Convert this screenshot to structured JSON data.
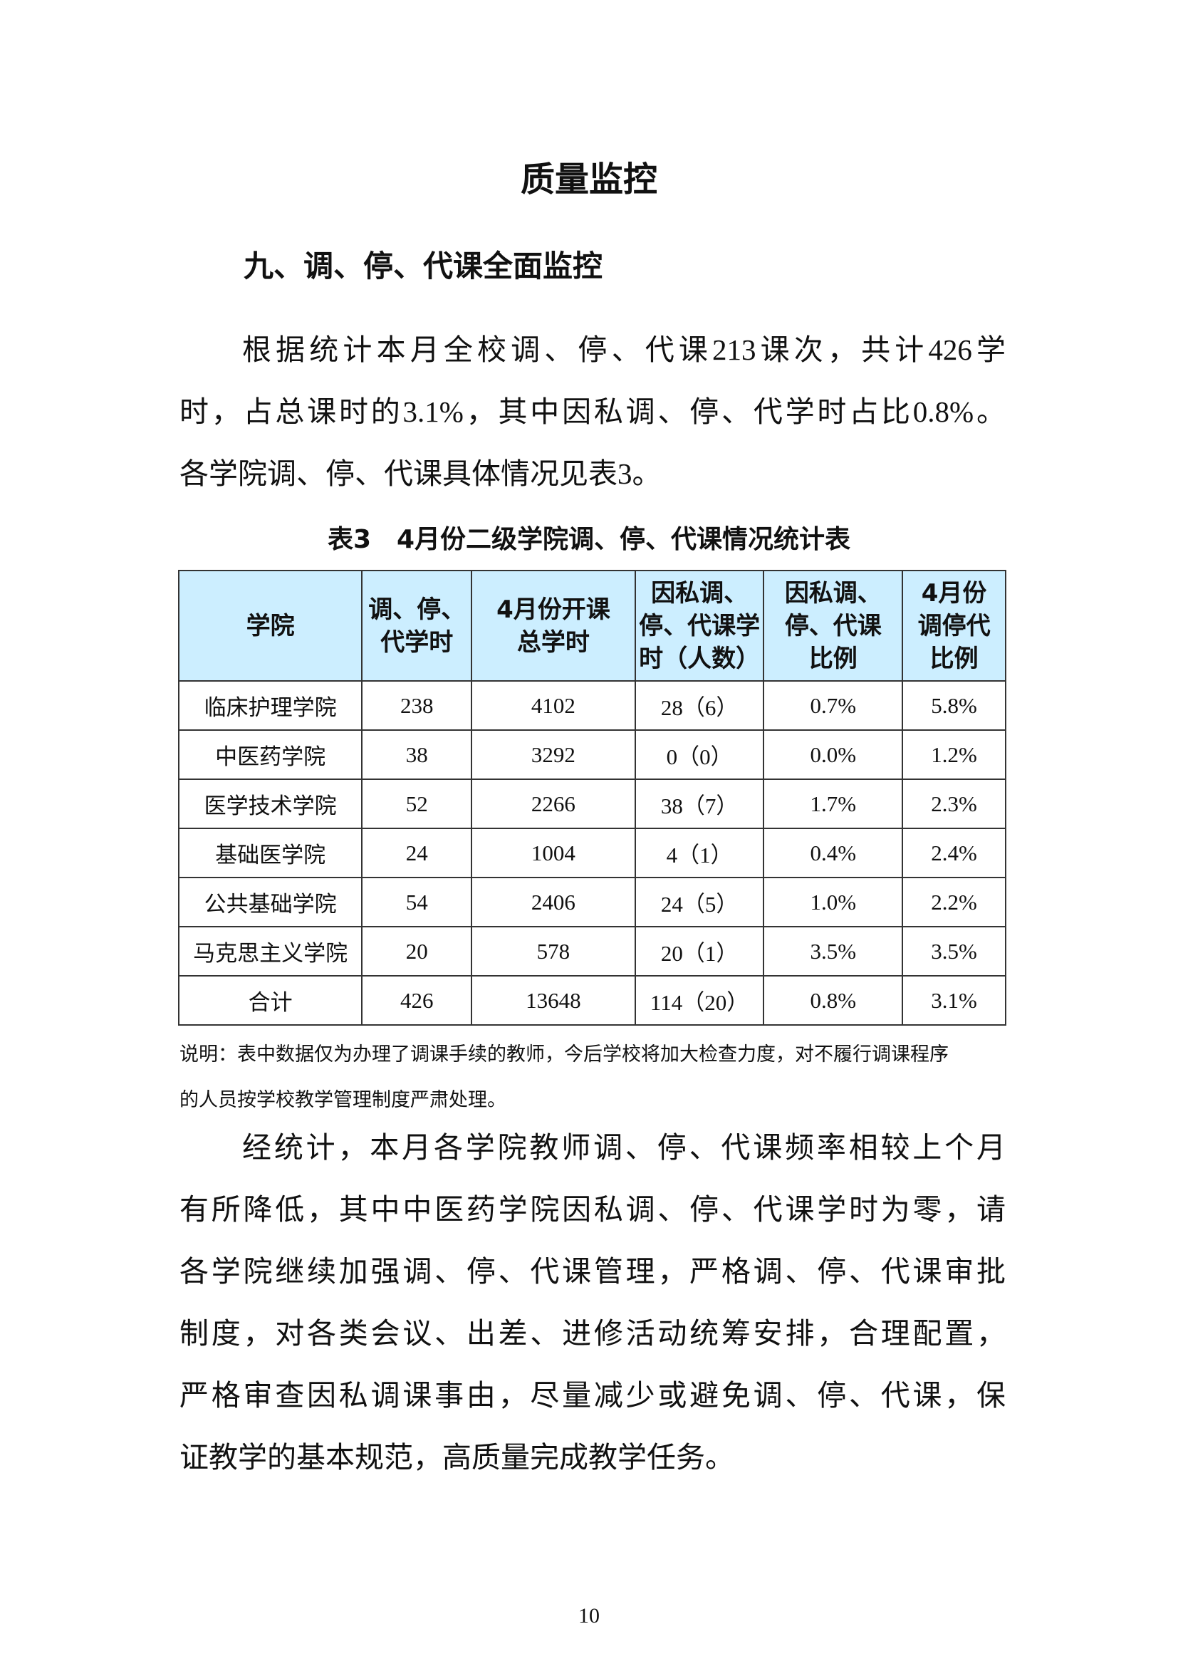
{
  "title": "质量监控",
  "section_heading": "九、调、停、代课全面监控",
  "paragraph1": [
    "根据统计本月全校调、停、代课213课次，共计426学",
    "时，占总课时的3.1%，其中因私调、停、代学时占比0.8%。",
    "各学院调、停、代课具体情况见表3。"
  ],
  "table_caption": "表3　4月份二级学院调、停、代课情况统计表",
  "table": {
    "header_color": "#cceeff",
    "columns": [
      "学院",
      "调、停、代学时",
      "4月份开课总学时",
      "因私调、停、代课学时（人数）",
      "因私调、停、代课比例",
      "4月份调停代比例"
    ],
    "rows": [
      [
        "临床护理学院",
        "238",
        "4102",
        "28（6）",
        "0.7%",
        "5.8%"
      ],
      [
        "中医药学院",
        "38",
        "3292",
        "0（0）",
        "0.0%",
        "1.2%"
      ],
      [
        "医学技术学院",
        "52",
        "2266",
        "38（7）",
        "1.7%",
        "2.3%"
      ],
      [
        "基础医学院",
        "24",
        "1004",
        "4（1）",
        "0.4%",
        "2.4%"
      ],
      [
        "公共基础学院",
        "54",
        "2406",
        "24（5）",
        "1.0%",
        "2.2%"
      ],
      [
        "马克思主义学院",
        "20",
        "578",
        "20（1）",
        "3.5%",
        "3.5%"
      ],
      [
        "合计",
        "426",
        "13648",
        "114（20）",
        "0.8%",
        "3.1%"
      ]
    ]
  },
  "note": [
    "说明：表中数据仅为办理了调课手续的教师，今后学校将加大检查力度，对不履行调课程序",
    "的人员按学校教学管理制度严肃处理。"
  ],
  "paragraph2": [
    "经统计，本月各学院教师调、停、代课频率相较上个月",
    "有所降低，其中中医药学院因私调、停、代课学时为零，请",
    "各学院继续加强调、停、代课管理，严格调、停、代课审批",
    "制度，对各类会议、出差、进修活动统筹安排，合理配置，",
    "严格审查因私调课事由，尽量减少或避免调、停、代课，保",
    "证教学的基本规范，高质量完成教学任务。"
  ],
  "page_number": "10"
}
